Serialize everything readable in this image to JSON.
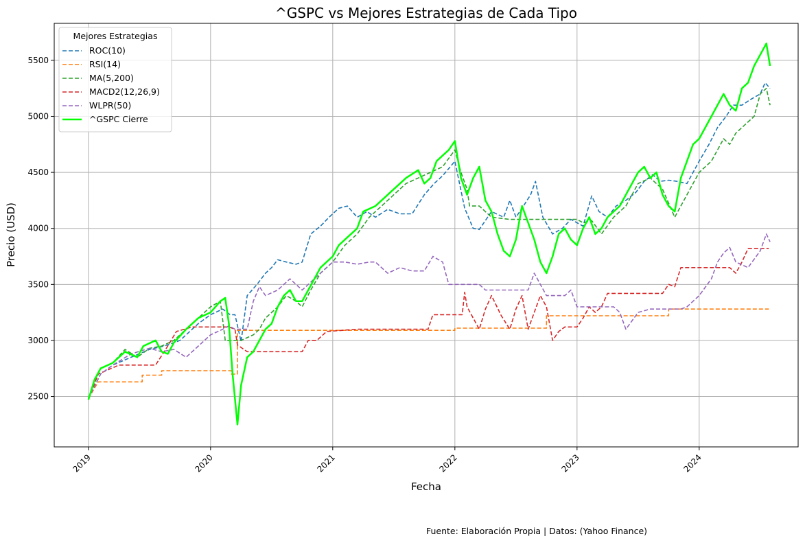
{
  "chart_data": {
    "type": "line",
    "title": "^GSPC vs Mejores Estrategias de Cada Tipo",
    "xlabel": "Fecha",
    "ylabel": "Precio (USD)",
    "xlim": [
      2018.72,
      2024.81
    ],
    "ylim": [
      2050,
      5830
    ],
    "grid": true,
    "legend_title": "Mejores Estrategias",
    "legend_position": "upper-left",
    "x_ticks": [
      {
        "value": 2019,
        "label": "2019"
      },
      {
        "value": 2020,
        "label": "2020"
      },
      {
        "value": 2021,
        "label": "2021"
      },
      {
        "value": 2022,
        "label": "2022"
      },
      {
        "value": 2023,
        "label": "2023"
      },
      {
        "value": 2024,
        "label": "2024"
      }
    ],
    "y_ticks": [
      {
        "value": 2500,
        "label": "2500"
      },
      {
        "value": 3000,
        "label": "3000"
      },
      {
        "value": 3500,
        "label": "3500"
      },
      {
        "value": 4000,
        "label": "4000"
      },
      {
        "value": 4500,
        "label": "4500"
      },
      {
        "value": 5000,
        "label": "5000"
      },
      {
        "value": 5500,
        "label": "5500"
      }
    ],
    "series": [
      {
        "name": "ROC(10)",
        "color": "#1f77b4",
        "style": "dashed",
        "x": [
          2019.0,
          2019.1,
          2019.2,
          2019.35,
          2019.5,
          2019.62,
          2019.75,
          2019.9,
          2020.0,
          2020.1,
          2020.16,
          2020.2,
          2020.25,
          2020.3,
          2020.38,
          2020.45,
          2020.5,
          2020.55,
          2020.62,
          2020.7,
          2020.75,
          2020.82,
          2020.9,
          2020.97,
          2021.05,
          2021.12,
          2021.2,
          2021.28,
          2021.35,
          2021.45,
          2021.55,
          2021.65,
          2021.75,
          2021.83,
          2021.9,
          2021.97,
          2022.0,
          2022.08,
          2022.15,
          2022.2,
          2022.3,
          2022.4,
          2022.45,
          2022.5,
          2022.55,
          2022.62,
          2022.66,
          2022.72,
          2022.8,
          2022.88,
          2022.95,
          2023.0,
          2023.05,
          2023.12,
          2023.18,
          2023.25,
          2023.32,
          2023.4,
          2023.48,
          2023.55,
          2023.62,
          2023.68,
          2023.75,
          2023.82,
          2023.9,
          2024.0,
          2024.08,
          2024.15,
          2024.22,
          2024.28,
          2024.35,
          2024.42,
          2024.5,
          2024.54,
          2024.58
        ],
        "values": [
          2480,
          2700,
          2780,
          2850,
          2920,
          2950,
          3000,
          3150,
          3230,
          3280,
          3230,
          3230,
          2990,
          3400,
          3500,
          3600,
          3650,
          3720,
          3700,
          3680,
          3700,
          3950,
          4020,
          4100,
          4180,
          4200,
          4100,
          4150,
          4100,
          4170,
          4130,
          4130,
          4300,
          4400,
          4470,
          4560,
          4600,
          4180,
          4000,
          3990,
          4150,
          4100,
          4250,
          4100,
          4180,
          4300,
          4420,
          4100,
          3950,
          4000,
          4080,
          4050,
          4020,
          4290,
          4150,
          4100,
          4200,
          4250,
          4320,
          4420,
          4480,
          4420,
          4430,
          4420,
          4400,
          4600,
          4750,
          4900,
          5000,
          5100,
          5100,
          5150,
          5200,
          5300,
          5250
        ]
      },
      {
        "name": "RSI(14)",
        "color": "#ff7f0e",
        "style": "dashed",
        "x": [
          2019.0,
          2019.08,
          2019.44,
          2019.44,
          2019.6,
          2019.6,
          2020.17,
          2020.17,
          2020.22,
          2020.22,
          2021.0,
          2021.0,
          2021.75,
          2021.75,
          2022.0,
          2022.0,
          2022.75,
          2022.75,
          2023.75,
          2023.75,
          2024.57
        ],
        "values": [
          2480,
          2630,
          2630,
          2690,
          2690,
          2730,
          2730,
          2700,
          2700,
          3090,
          3090,
          3090,
          3090,
          3090,
          3090,
          3110,
          3110,
          3220,
          3220,
          3280,
          3280
        ]
      },
      {
        "name": "MA(5,200)",
        "color": "#2ca02c",
        "style": "dashed",
        "x": [
          2019.0,
          2019.1,
          2019.2,
          2019.3,
          2019.4,
          2019.5,
          2019.6,
          2019.7,
          2019.8,
          2019.9,
          2020.0,
          2020.08,
          2020.12,
          2020.25,
          2020.35,
          2020.4,
          2020.45,
          2020.55,
          2020.62,
          2020.7,
          2020.75,
          2020.82,
          2020.9,
          2021.0,
          2021.1,
          2021.2,
          2021.3,
          2021.4,
          2021.5,
          2021.6,
          2021.7,
          2021.8,
          2021.9,
          2022.0,
          2022.05,
          2022.1,
          2022.12,
          2022.2,
          2022.3,
          2022.45,
          2022.6,
          2022.75,
          2022.85,
          2023.0,
          2023.05,
          2023.12,
          2023.2,
          2023.3,
          2023.4,
          2023.5,
          2023.6,
          2023.7,
          2023.8,
          2023.9,
          2024.0,
          2024.1,
          2024.2,
          2024.25,
          2024.3,
          2024.4,
          2024.45,
          2024.5,
          2024.55,
          2024.58
        ],
        "values": [
          2480,
          2750,
          2800,
          2920,
          2850,
          2930,
          2950,
          3000,
          3100,
          3200,
          3300,
          3350,
          3000,
          3000,
          3050,
          3100,
          3200,
          3300,
          3400,
          3350,
          3300,
          3450,
          3600,
          3700,
          3850,
          3950,
          4100,
          4200,
          4300,
          4400,
          4450,
          4500,
          4550,
          4700,
          4500,
          4350,
          4200,
          4200,
          4100,
          4080,
          4080,
          4080,
          4080,
          4080,
          4050,
          4070,
          3950,
          4100,
          4200,
          4400,
          4450,
          4350,
          4100,
          4300,
          4500,
          4600,
          4800,
          4750,
          4850,
          4950,
          5000,
          5200,
          5250,
          5100
        ]
      },
      {
        "name": "MACD2(12,26,9)",
        "color": "#d62728",
        "style": "dashed",
        "x": [
          2019.0,
          2019.08,
          2019.25,
          2019.3,
          2019.55,
          2019.65,
          2019.72,
          2019.85,
          2020.0,
          2020.15,
          2020.2,
          2020.22,
          2020.3,
          2020.4,
          2020.45,
          2020.75,
          2020.8,
          2020.87,
          2020.95,
          2021.2,
          2021.5,
          2021.78,
          2021.82,
          2022.06,
          2022.08,
          2022.1,
          2022.15,
          2022.2,
          2022.25,
          2022.3,
          2022.38,
          2022.45,
          2022.5,
          2022.55,
          2022.6,
          2022.7,
          2022.75,
          2022.8,
          2022.85,
          2022.9,
          2023.0,
          2023.05,
          2023.1,
          2023.15,
          2023.2,
          2023.25,
          2023.35,
          2023.5,
          2023.6,
          2023.7,
          2023.75,
          2023.8,
          2023.85,
          2023.9,
          2024.1,
          2024.25,
          2024.3,
          2024.35,
          2024.4,
          2024.5,
          2024.57
        ],
        "values": [
          2480,
          2700,
          2780,
          2780,
          2780,
          2950,
          3080,
          3120,
          3120,
          3120,
          3100,
          2960,
          2900,
          2900,
          2900,
          2900,
          3000,
          3000,
          3080,
          3100,
          3100,
          3100,
          3230,
          3230,
          3430,
          3300,
          3200,
          3100,
          3280,
          3400,
          3220,
          3100,
          3280,
          3400,
          3100,
          3400,
          3300,
          3000,
          3080,
          3120,
          3120,
          3200,
          3300,
          3250,
          3300,
          3420,
          3420,
          3420,
          3420,
          3420,
          3500,
          3480,
          3650,
          3650,
          3650,
          3650,
          3600,
          3700,
          3820,
          3820,
          3820
        ]
      },
      {
        "name": "WLPR(50)",
        "color": "#9467bd",
        "style": "dashed",
        "x": [
          2019.0,
          2019.1,
          2019.2,
          2019.35,
          2019.5,
          2019.6,
          2019.7,
          2019.8,
          2019.9,
          2020.0,
          2020.1,
          2020.15,
          2020.2,
          2020.3,
          2020.35,
          2020.4,
          2020.45,
          2020.55,
          2020.65,
          2020.75,
          2020.85,
          2020.95,
          2021.0,
          2021.1,
          2021.2,
          2021.3,
          2021.35,
          2021.45,
          2021.55,
          2021.65,
          2021.75,
          2021.82,
          2021.9,
          2021.95,
          2022.1,
          2022.2,
          2022.25,
          2022.35,
          2022.45,
          2022.55,
          2022.6,
          2022.65,
          2022.75,
          2022.9,
          2022.95,
          2023.0,
          2023.1,
          2023.2,
          2023.3,
          2023.35,
          2023.4,
          2023.5,
          2023.6,
          2023.7,
          2023.8,
          2023.85,
          2023.9,
          2024.0,
          2024.1,
          2024.15,
          2024.2,
          2024.25,
          2024.3,
          2024.4,
          2024.5,
          2024.55,
          2024.58
        ],
        "values": [
          2480,
          2700,
          2780,
          2880,
          2930,
          2900,
          2920,
          2850,
          2950,
          3050,
          3100,
          3130,
          3100,
          3100,
          3350,
          3480,
          3400,
          3450,
          3550,
          3450,
          3550,
          3650,
          3700,
          3700,
          3680,
          3700,
          3700,
          3600,
          3650,
          3620,
          3620,
          3750,
          3700,
          3500,
          3500,
          3500,
          3450,
          3450,
          3450,
          3450,
          3450,
          3600,
          3400,
          3400,
          3450,
          3300,
          3300,
          3300,
          3300,
          3250,
          3100,
          3250,
          3280,
          3280,
          3280,
          3280,
          3300,
          3400,
          3550,
          3700,
          3780,
          3830,
          3700,
          3650,
          3800,
          3950,
          3880
        ]
      },
      {
        "name": "^GSPC Cierre",
        "color": "#00ff00",
        "style": "solid",
        "x": [
          2019.0,
          2019.05,
          2019.1,
          2019.2,
          2019.3,
          2019.4,
          2019.45,
          2019.55,
          2019.6,
          2019.65,
          2019.7,
          2019.8,
          2019.9,
          2020.0,
          2020.08,
          2020.12,
          2020.15,
          2020.18,
          2020.22,
          2020.25,
          2020.3,
          2020.35,
          2020.4,
          2020.45,
          2020.5,
          2020.55,
          2020.6,
          2020.65,
          2020.7,
          2020.75,
          2020.8,
          2020.85,
          2020.9,
          2021.0,
          2021.05,
          2021.15,
          2021.2,
          2021.25,
          2021.35,
          2021.4,
          2021.5,
          2021.6,
          2021.7,
          2021.75,
          2021.8,
          2021.85,
          2021.9,
          2021.95,
          2022.0,
          2022.05,
          2022.1,
          2022.15,
          2022.2,
          2022.25,
          2022.3,
          2022.35,
          2022.4,
          2022.45,
          2022.5,
          2022.55,
          2022.6,
          2022.65,
          2022.7,
          2022.75,
          2022.8,
          2022.85,
          2022.9,
          2022.95,
          2023.0,
          2023.05,
          2023.1,
          2023.15,
          2023.2,
          2023.25,
          2023.3,
          2023.35,
          2023.4,
          2023.45,
          2023.5,
          2023.55,
          2023.6,
          2023.65,
          2023.7,
          2023.75,
          2023.8,
          2023.85,
          2023.9,
          2023.95,
          2024.0,
          2024.05,
          2024.1,
          2024.15,
          2024.2,
          2024.25,
          2024.3,
          2024.35,
          2024.4,
          2024.45,
          2024.5,
          2024.55,
          2024.58
        ],
        "values": [
          2470,
          2650,
          2750,
          2800,
          2900,
          2850,
          2950,
          3000,
          2900,
          2880,
          2980,
          3100,
          3200,
          3250,
          3350,
          3380,
          3150,
          2700,
          2250,
          2600,
          2850,
          2900,
          3000,
          3100,
          3150,
          3300,
          3400,
          3450,
          3350,
          3350,
          3450,
          3550,
          3650,
          3750,
          3850,
          3950,
          4000,
          4150,
          4200,
          4250,
          4350,
          4450,
          4520,
          4400,
          4450,
          4600,
          4650,
          4700,
          4780,
          4450,
          4300,
          4450,
          4550,
          4250,
          4150,
          3950,
          3800,
          3750,
          3900,
          4200,
          4050,
          3900,
          3700,
          3600,
          3750,
          3950,
          4000,
          3900,
          3850,
          4000,
          4100,
          3950,
          4000,
          4100,
          4150,
          4200,
          4300,
          4400,
          4500,
          4550,
          4450,
          4500,
          4300,
          4200,
          4150,
          4450,
          4600,
          4750,
          4800,
          4900,
          5000,
          5100,
          5200,
          5100,
          5050,
          5250,
          5300,
          5450,
          5550,
          5650,
          5450
        ]
      }
    ]
  },
  "footer": "Fuente: Elaboración Propia | Datos: (Yahoo Finance)"
}
